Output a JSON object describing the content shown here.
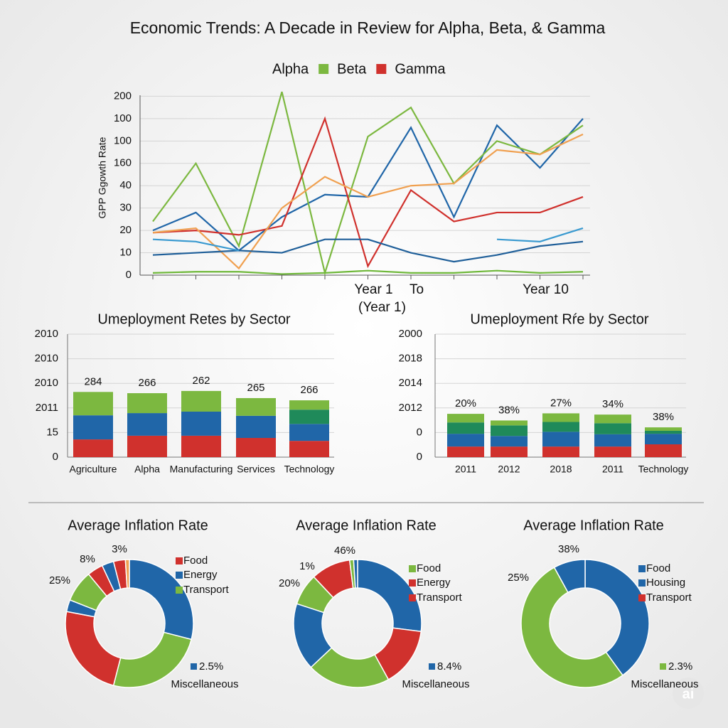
{
  "title": "Economic Trends: A Decade in Review for Alpha, Beta, & Gamma",
  "watermark": "ai",
  "chart_data": [
    {
      "type": "line",
      "y_label": "GPP Ggowth Rate",
      "annotation": "(Year 1)",
      "categories": [
        null,
        null,
        null,
        null,
        null,
        "Year 1",
        "To",
        null,
        null,
        "Year 10",
        null
      ],
      "ylim": [
        0,
        8.3
      ],
      "yticks": [
        0,
        {
          "value": 1,
          "label": "10"
        },
        {
          "value": 2,
          "label": "20"
        },
        {
          "value": 3,
          "label": "30"
        },
        {
          "value": 4,
          "label": "40"
        },
        {
          "value": 5,
          "label": "160"
        },
        {
          "value": 6,
          "label": "100"
        },
        {
          "value": 7,
          "label": "100"
        },
        {
          "value": 8,
          "label": "200"
        }
      ],
      "grid": true,
      "series": [
        {
          "name": "Alpha",
          "color": "#2066a8",
          "values": [
            2.0,
            2.8,
            1.1,
            2.6,
            3.6,
            3.5,
            6.6,
            2.6,
            6.7,
            4.8,
            7.0
          ]
        },
        {
          "name": "Beta",
          "color": "#7cb840",
          "values": [
            2.4,
            5.0,
            1.3,
            8.2,
            0.1,
            6.2,
            7.5,
            4.1,
            6.0,
            5.4,
            6.7
          ]
        },
        {
          "name": "Gamma",
          "color": "#d0312d",
          "values": [
            1.9,
            2.0,
            1.8,
            2.2,
            7.0,
            0.4,
            3.8,
            2.4,
            2.8,
            2.8,
            3.5
          ]
        },
        {
          "color": "#f0a050",
          "values": [
            1.9,
            2.1,
            0.3,
            3.0,
            4.4,
            3.5,
            4.0,
            4.1,
            5.6,
            5.4,
            6.3
          ]
        },
        {
          "color": "#1f5f99",
          "values": [
            0.9,
            1.0,
            1.1,
            1.0,
            1.6,
            1.6,
            1.0,
            0.6,
            0.9,
            1.3,
            1.5
          ]
        },
        {
          "color": "#3a9ad0",
          "values": [
            1.6,
            1.5,
            1.1,
            null,
            null,
            null,
            null,
            null,
            1.6,
            1.5,
            2.1
          ]
        },
        {
          "color": "#6fb83a",
          "values": [
            0.1,
            0.15,
            0.15,
            0.05,
            0.1,
            0.2,
            0.1,
            0.1,
            0.2,
            0.1,
            0.15
          ]
        }
      ]
    },
    {
      "type": "bar",
      "title": "Umeployment Retes by Sector",
      "categories": [
        "Agriculture",
        "Alpha",
        "Manufacturing",
        "Services",
        "Technology"
      ],
      "bar_labels": [
        "284",
        "266",
        "262",
        "265",
        "266"
      ],
      "ylim": [
        0,
        5
      ],
      "yticks": [
        0,
        {
          "value": 1,
          "label": "15"
        },
        {
          "value": 2,
          "label": "2011"
        },
        {
          "value": 3,
          "label": "2010"
        },
        {
          "value": 4,
          "label": "2010"
        },
        {
          "value": 5,
          "label": "2010"
        }
      ],
      "grid": true,
      "series": [
        {
          "color": "#d0312d",
          "values": [
            0.72,
            0.87,
            0.87,
            0.78,
            0.66
          ]
        },
        {
          "color": "#2066a8",
          "values": [
            0.98,
            0.92,
            0.98,
            0.9,
            0.69
          ]
        },
        {
          "color": "#1f8a5a",
          "values": [
            0,
            0,
            0,
            0,
            0.58
          ]
        },
        {
          "color": "#7cb840",
          "values": [
            0.95,
            0.81,
            0.84,
            0.72,
            0.38
          ]
        }
      ]
    },
    {
      "type": "bar",
      "title": "Umeployment Rŕe by Sector",
      "categories": [
        "2011",
        "2012",
        "2018",
        "2011",
        "Technology"
      ],
      "bar_labels": [
        "20%",
        "38%",
        "27%",
        "34%",
        "38%"
      ],
      "ylim": [
        0,
        5
      ],
      "yticks": [
        0,
        {
          "value": 1,
          "label": "0"
        },
        {
          "value": 2,
          "label": "2012"
        },
        {
          "value": 3,
          "label": "2014"
        },
        {
          "value": 4,
          "label": "2018"
        },
        {
          "value": 5,
          "label": "2000"
        }
      ],
      "grid": true,
      "series": [
        {
          "color": "#d0312d",
          "values": [
            0.43,
            0.43,
            0.43,
            0.43,
            0.52
          ]
        },
        {
          "color": "#2066a8",
          "values": [
            0.52,
            0.43,
            0.6,
            0.5,
            0.43
          ]
        },
        {
          "color": "#1f8a5a",
          "values": [
            0.46,
            0.43,
            0.4,
            0.45,
            0.12
          ]
        },
        {
          "color": "#7cb840",
          "values": [
            0.35,
            0.2,
            0.35,
            0.35,
            0.14
          ]
        }
      ]
    },
    {
      "type": "pie",
      "title": "Average Inflation Rate",
      "values": [
        29,
        25,
        24,
        3,
        8,
        4,
        3,
        3,
        1
      ],
      "colors": [
        "#2066a8",
        "#7cb840",
        "#d0312d",
        "#2066a8",
        "#7cb840",
        "#d0312d",
        "#2066a8",
        "#d0312d",
        "#f0a050"
      ],
      "legend": [
        {
          "name": "Food",
          "color": "#d0312d"
        },
        {
          "name": "Energy",
          "color": "#2066a8"
        },
        {
          "name": "Transport",
          "color": "#7cb840"
        }
      ],
      "annotations": [
        "8%",
        "3%",
        "25%",
        "2.5%",
        "Miscellaneous"
      ]
    },
    {
      "type": "pie",
      "title": "Average Inflation Rate",
      "values": [
        27,
        15,
        21,
        17,
        8,
        10,
        1,
        1
      ],
      "colors": [
        "#2066a8",
        "#d0312d",
        "#7cb840",
        "#2066a8",
        "#7cb840",
        "#d0312d",
        "#7cb840",
        "#2066a8"
      ],
      "legend": [
        {
          "name": "Food",
          "color": "#7cb840"
        },
        {
          "name": "Energy",
          "color": "#d0312d"
        },
        {
          "name": "Transport",
          "color": "#d0312d"
        }
      ],
      "annotations": [
        "46%",
        "1%",
        "20%",
        "8.4%",
        "Miscellaneous"
      ]
    },
    {
      "type": "pie",
      "title": "Average Inflation Rate",
      "values": [
        40,
        52,
        8
      ],
      "colors": [
        "#2066a8",
        "#7cb840",
        "#2066a8"
      ],
      "legend": [
        {
          "name": "Food",
          "color": "#2066a8"
        },
        {
          "name": "Housing",
          "color": "#2066a8"
        },
        {
          "name": "Transport",
          "color": "#d0312d"
        }
      ],
      "annotations": [
        "38%",
        "25%",
        "2.3%",
        "Miscellaneous"
      ]
    }
  ]
}
